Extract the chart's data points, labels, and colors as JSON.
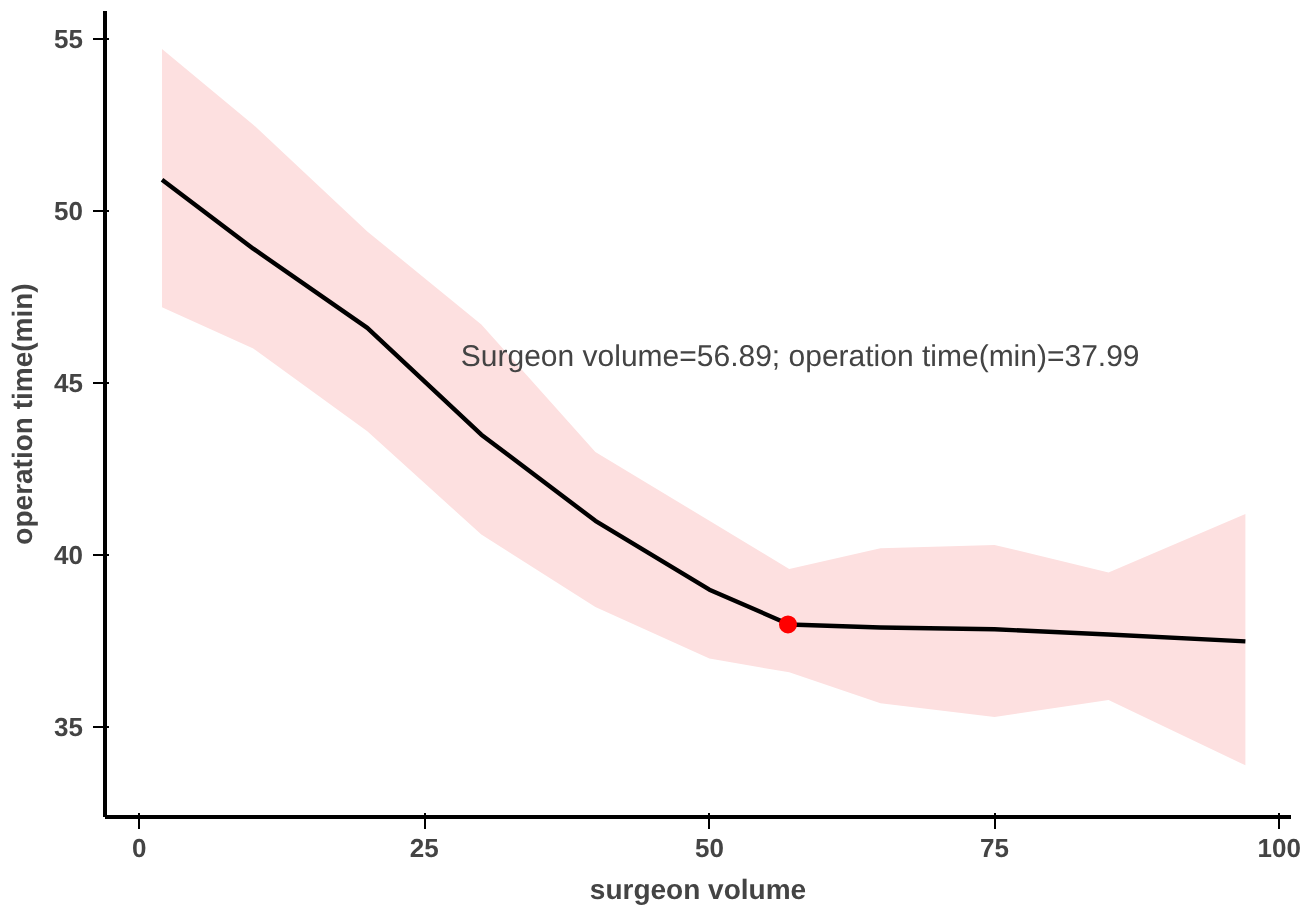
{
  "chart_data": {
    "type": "line",
    "xlabel": "surgeon volume",
    "ylabel": "operation time(min)",
    "xlim": [
      -3,
      101
    ],
    "ylim": [
      32.4,
      55.8
    ],
    "xticks": [
      0,
      25,
      50,
      75,
      100
    ],
    "yticks": [
      35,
      40,
      45,
      50,
      55
    ],
    "grid": false,
    "annotations": [
      "Surgeon volume=56.89; operation time(min)=37.99"
    ],
    "series": [
      {
        "color": "#000000",
        "x": [
          2,
          10,
          20,
          30,
          40,
          50,
          57,
          65,
          75,
          85,
          97
        ],
        "values": [
          50.9,
          48.9,
          46.6,
          43.5,
          41.0,
          39.0,
          37.99,
          37.9,
          37.85,
          37.7,
          37.5
        ],
        "lower": [
          47.2,
          46.0,
          43.6,
          40.6,
          38.5,
          37.0,
          36.6,
          35.7,
          35.3,
          35.8,
          33.9
        ],
        "upper": [
          54.7,
          52.5,
          49.4,
          46.7,
          43.0,
          41.0,
          39.6,
          40.2,
          40.3,
          39.5,
          41.2
        ]
      },
      {
        "type": "scatter",
        "color": "#ff0000",
        "x": [
          56.89
        ],
        "values": [
          37.99
        ]
      }
    ]
  }
}
